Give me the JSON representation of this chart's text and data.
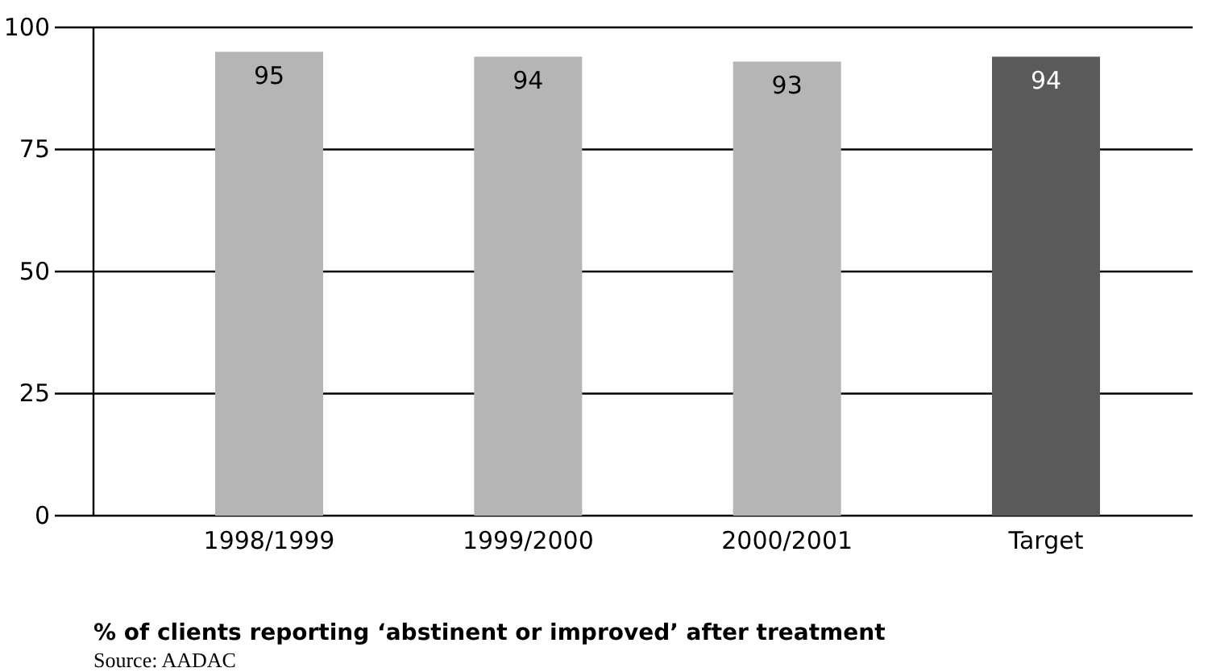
{
  "chart_data": {
    "type": "bar",
    "title": "% of clients reporting ‘abstinent or improved’ after treatment",
    "categories": [
      "1998/1999",
      "1999/2000",
      "2000/2001",
      "Target"
    ],
    "values": [
      95,
      94,
      93,
      94
    ],
    "colors": [
      "#b5b5b5",
      "#b5b5b5",
      "#b5b5b5",
      "#5a5a5a"
    ],
    "ylim": [
      0,
      100
    ],
    "yticks": [
      0,
      25,
      50,
      75,
      100
    ],
    "grid": "y",
    "data_labels": true,
    "annotations": [
      "Source: AADAC"
    ]
  }
}
